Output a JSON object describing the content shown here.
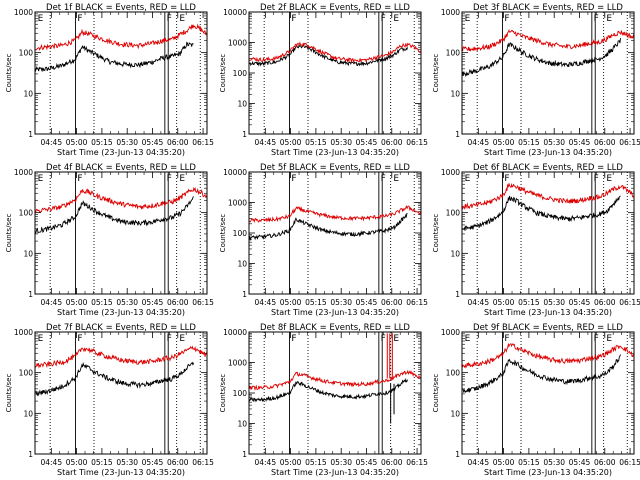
{
  "figure": {
    "ylabel": "Counts/sec",
    "xlabel": "Start Time (23-Jun-13 04:35:20)"
  },
  "chart_data": [
    {
      "type": "line",
      "title": "Det 1f BLACK = Events, RED = LLD",
      "xlabel": "Start Time (23-Jun-13 04:35:20)",
      "ylabel": "Counts/sec",
      "yscale": "log",
      "ylim": [
        1,
        1000
      ],
      "yticks": [
        1,
        10,
        100,
        1000
      ],
      "ytick_labels": [
        "1",
        "10",
        "100",
        "1000"
      ],
      "xlim_minutes": [
        0,
        102
      ],
      "xtick_labels": [
        "04:45",
        "05:00",
        "05:15",
        "05:30",
        "05:45",
        "06:00",
        "06:15"
      ],
      "x": [
        0,
        8,
        16,
        24,
        28,
        32,
        36,
        44,
        52,
        62,
        70,
        76,
        81,
        86,
        90,
        94,
        98,
        102
      ],
      "series": [
        {
          "color": "#000000",
          "values": [
            38,
            40,
            48,
            70,
            140,
            110,
            90,
            60,
            52,
            50,
            60,
            75,
            80,
            95,
            160,
            150,
            null,
            null
          ]
        },
        {
          "color": "#dd0000",
          "values": [
            130,
            140,
            150,
            200,
            320,
            290,
            250,
            190,
            160,
            150,
            170,
            200,
            210,
            280,
            350,
            480,
            380,
            280
          ]
        }
      ],
      "solid_markers": [
        24,
        77,
        79
      ],
      "dotted_markers": [
        9,
        35,
        84,
        98
      ],
      "region_labels": [
        "E",
        "F",
        "F",
        "E"
      ]
    },
    {
      "type": "line",
      "title": "Det 2f BLACK = Events, RED = LLD",
      "xlabel": "Start Time (23-Jun-13 04:35:20)",
      "ylabel": "Counts/sec",
      "yscale": "log",
      "ylim": [
        1,
        10000
      ],
      "yticks": [
        1,
        10,
        100,
        1000,
        10000
      ],
      "ytick_labels": [
        "1",
        "10",
        "100",
        "1000",
        "10000"
      ],
      "xlim_minutes": [
        0,
        102
      ],
      "xtick_labels": [
        "04:45",
        "05:00",
        "05:15",
        "05:30",
        "05:45",
        "06:00",
        "06:15"
      ],
      "x": [
        0,
        8,
        16,
        24,
        28,
        32,
        36,
        44,
        52,
        62,
        70,
        76,
        81,
        86,
        90,
        94,
        98,
        102
      ],
      "series": [
        {
          "color": "#000000",
          "values": [
            210,
            200,
            230,
            380,
            700,
            740,
            620,
            350,
            230,
            200,
            210,
            260,
            300,
            400,
            600,
            650,
            null,
            null
          ]
        },
        {
          "color": "#dd0000",
          "values": [
            300,
            270,
            300,
            500,
            850,
            900,
            780,
            450,
            300,
            260,
            270,
            330,
            380,
            520,
            780,
            850,
            700,
            500
          ]
        }
      ],
      "solid_markers": [
        24,
        77,
        79
      ],
      "dotted_markers": [
        9,
        35,
        84,
        98
      ],
      "region_labels": [
        "F",
        "F",
        "E"
      ]
    },
    {
      "type": "line",
      "title": "Det 3f BLACK = Events, RED = LLD",
      "xlabel": "Start Time (23-Jun-13 04:35:20)",
      "ylabel": "Counts/sec",
      "yscale": "log",
      "ylim": [
        1,
        1000
      ],
      "yticks": [
        1,
        10,
        100,
        1000
      ],
      "ytick_labels": [
        "1",
        "10",
        "100",
        "1000"
      ],
      "xlim_minutes": [
        0,
        102
      ],
      "xtick_labels": [
        "04:45",
        "05:00",
        "05:15",
        "05:30",
        "05:45",
        "06:00",
        "06:15"
      ],
      "x": [
        0,
        8,
        16,
        24,
        28,
        32,
        36,
        44,
        52,
        62,
        70,
        76,
        81,
        86,
        90,
        94,
        98,
        102
      ],
      "series": [
        {
          "color": "#000000",
          "values": [
            30,
            35,
            45,
            75,
            160,
            130,
            100,
            70,
            55,
            50,
            55,
            65,
            70,
            90,
            130,
            200,
            null,
            null
          ]
        },
        {
          "color": "#dd0000",
          "values": [
            120,
            125,
            140,
            200,
            330,
            300,
            250,
            200,
            160,
            140,
            150,
            170,
            180,
            220,
            280,
            320,
            280,
            230
          ]
        }
      ],
      "solid_markers": [
        24,
        77,
        79
      ],
      "dotted_markers": [
        9,
        35,
        84,
        98
      ],
      "region_labels": [
        "E",
        "F",
        "F",
        "E"
      ]
    },
    {
      "type": "line",
      "title": "Det 4f BLACK = Events, RED = LLD",
      "xlabel": "Start Time (23-Jun-13 04:35:20)",
      "ylabel": "Counts/sec",
      "yscale": "log",
      "ylim": [
        1,
        1000
      ],
      "yticks": [
        1,
        10,
        100,
        1000
      ],
      "ytick_labels": [
        "1",
        "10",
        "100",
        "1000"
      ],
      "xlim_minutes": [
        0,
        102
      ],
      "xtick_labels": [
        "04:45",
        "05:00",
        "05:15",
        "05:30",
        "05:45",
        "06:00",
        "06:15"
      ],
      "x": [
        0,
        8,
        16,
        24,
        28,
        32,
        36,
        44,
        52,
        62,
        70,
        76,
        81,
        86,
        90,
        94,
        98,
        102
      ],
      "series": [
        {
          "color": "#000000",
          "values": [
            35,
            40,
            50,
            80,
            170,
            140,
            110,
            75,
            60,
            55,
            60,
            70,
            75,
            95,
            140,
            230,
            null,
            null
          ]
        },
        {
          "color": "#dd0000",
          "values": [
            110,
            120,
            140,
            210,
            350,
            320,
            260,
            200,
            160,
            140,
            150,
            170,
            180,
            230,
            300,
            380,
            320,
            250
          ]
        }
      ],
      "solid_markers": [
        24,
        77,
        79
      ],
      "dotted_markers": [
        9,
        35,
        84,
        98
      ],
      "region_labels": [
        "E",
        "F",
        "F",
        "E"
      ]
    },
    {
      "type": "line",
      "title": "Det 5f BLACK = Events, RED = LLD",
      "xlabel": "Start Time (23-Jun-13 04:35:20)",
      "ylabel": "Counts/sec",
      "yscale": "log",
      "ylim": [
        1,
        10000
      ],
      "yticks": [
        1,
        10,
        100,
        1000,
        10000
      ],
      "ytick_labels": [
        "1",
        "10",
        "100",
        "1000",
        "10000"
      ],
      "xlim_minutes": [
        0,
        102
      ],
      "xtick_labels": [
        "04:45",
        "05:00",
        "05:15",
        "05:30",
        "05:45",
        "06:00",
        "06:15"
      ],
      "x": [
        0,
        8,
        16,
        24,
        28,
        32,
        36,
        44,
        52,
        62,
        70,
        76,
        81,
        86,
        90,
        94,
        98,
        102
      ],
      "series": [
        {
          "color": "#000000",
          "values": [
            70,
            75,
            85,
            120,
            280,
            220,
            180,
            120,
            100,
            90,
            100,
            110,
            120,
            150,
            250,
            400,
            null,
            null
          ]
        },
        {
          "color": "#dd0000",
          "values": [
            260,
            260,
            280,
            350,
            650,
            560,
            480,
            380,
            320,
            300,
            310,
            340,
            360,
            420,
            550,
            700,
            560,
            420
          ]
        }
      ],
      "solid_markers": [
        24,
        77,
        79
      ],
      "dotted_markers": [
        9,
        35,
        84,
        98
      ],
      "region_labels": [
        "F",
        "F",
        "E"
      ]
    },
    {
      "type": "line",
      "title": "Det 6f BLACK = Events, RED = LLD",
      "xlabel": "Start Time (23-Jun-13 04:35:20)",
      "ylabel": "Counts/sec",
      "yscale": "log",
      "ylim": [
        1,
        1000
      ],
      "yticks": [
        1,
        10,
        100,
        1000
      ],
      "ytick_labels": [
        "1",
        "10",
        "100",
        "1000"
      ],
      "xlim_minutes": [
        0,
        102
      ],
      "xtick_labels": [
        "04:45",
        "05:00",
        "05:15",
        "05:30",
        "05:45",
        "06:00",
        "06:15"
      ],
      "x": [
        0,
        8,
        16,
        24,
        28,
        32,
        36,
        44,
        52,
        62,
        70,
        76,
        81,
        86,
        90,
        94,
        98,
        102
      ],
      "series": [
        {
          "color": "#000000",
          "values": [
            40,
            45,
            60,
            100,
            230,
            200,
            150,
            100,
            80,
            70,
            75,
            85,
            90,
            110,
            170,
            260,
            null,
            null
          ]
        },
        {
          "color": "#dd0000",
          "values": [
            140,
            150,
            180,
            260,
            480,
            440,
            360,
            270,
            220,
            190,
            200,
            230,
            240,
            300,
            380,
            450,
            350,
            260
          ]
        }
      ],
      "solid_markers": [
        24,
        77,
        79
      ],
      "dotted_markers": [
        9,
        35,
        84,
        98
      ],
      "region_labels": [
        "E",
        "F",
        "F",
        "E"
      ]
    },
    {
      "type": "line",
      "title": "Det 7f BLACK = Events, RED = LLD",
      "xlabel": "Start Time (23-Jun-13 04:35:20)",
      "ylabel": "Counts/sec",
      "yscale": "log",
      "ylim": [
        1,
        1000
      ],
      "yticks": [
        1,
        10,
        100,
        1000
      ],
      "ytick_labels": [
        "1",
        "10",
        "100",
        "1000"
      ],
      "xlim_minutes": [
        0,
        102
      ],
      "xtick_labels": [
        "04:45",
        "05:00",
        "05:15",
        "05:30",
        "05:45",
        "06:00",
        "06:15"
      ],
      "x": [
        0,
        8,
        16,
        24,
        28,
        32,
        36,
        44,
        52,
        62,
        70,
        76,
        81,
        86,
        90,
        94,
        98,
        102
      ],
      "series": [
        {
          "color": "#000000",
          "values": [
            30,
            35,
            45,
            75,
            150,
            130,
            100,
            70,
            55,
            50,
            55,
            65,
            70,
            90,
            130,
            170,
            null,
            null
          ]
        },
        {
          "color": "#dd0000",
          "values": [
            150,
            160,
            180,
            250,
            400,
            370,
            310,
            240,
            200,
            180,
            190,
            220,
            230,
            290,
            350,
            420,
            330,
            260
          ]
        }
      ],
      "solid_markers": [
        24,
        77,
        79
      ],
      "dotted_markers": [
        9,
        35,
        84,
        98
      ],
      "region_labels": [
        "E",
        "F",
        "F",
        "E"
      ]
    },
    {
      "type": "line",
      "title": "Det 8f BLACK = Events, RED = LLD",
      "xlabel": "Start Time (23-Jun-13 04:35:20)",
      "ylabel": "Counts/sec",
      "yscale": "log",
      "ylim": [
        1,
        10000
      ],
      "yticks": [
        1,
        10,
        100,
        1000,
        10000
      ],
      "ytick_labels": [
        "1",
        "10",
        "100",
        "1000",
        "10000"
      ],
      "xlim_minutes": [
        0,
        102
      ],
      "xtick_labels": [
        "04:45",
        "05:00",
        "05:15",
        "05:30",
        "05:45",
        "06:00",
        "06:15"
      ],
      "x": [
        0,
        8,
        16,
        24,
        28,
        32,
        36,
        44,
        52,
        62,
        70,
        76,
        81,
        86,
        90,
        94,
        98,
        102
      ],
      "series": [
        {
          "color": "#000000",
          "values": [
            60,
            60,
            70,
            100,
            220,
            190,
            150,
            100,
            80,
            75,
            80,
            95,
            100,
            130,
            200,
            280,
            null,
            null
          ]
        },
        {
          "color": "#dd0000",
          "values": [
            150,
            150,
            170,
            230,
            430,
            390,
            330,
            250,
            210,
            190,
            200,
            230,
            250,
            320,
            420,
            500,
            400,
            300
          ]
        }
      ],
      "spike_red": [
        {
          "x": 82,
          "values": [
            300,
            9000
          ]
        },
        {
          "x": 83.5,
          "values": [
            300,
            9000
          ]
        },
        {
          "x": 85,
          "values": [
            300,
            9000
          ]
        }
      ],
      "spike_black": [
        {
          "x": 84,
          "values": [
            10,
            200
          ]
        },
        {
          "x": 86,
          "values": [
            20,
            200
          ]
        }
      ],
      "solid_markers": [
        24,
        77,
        79
      ],
      "dotted_markers": [
        9,
        35,
        84,
        98
      ],
      "region_labels": [
        "F",
        "F",
        "E"
      ]
    },
    {
      "type": "line",
      "title": "Det 9f BLACK = Events, RED = LLD",
      "xlabel": "Start Time (23-Jun-13 04:35:20)",
      "ylabel": "Counts/sec",
      "yscale": "log",
      "ylim": [
        1,
        1000
      ],
      "yticks": [
        1,
        10,
        100,
        1000
      ],
      "ytick_labels": [
        "1",
        "10",
        "100",
        "1000"
      ],
      "xlim_minutes": [
        0,
        102
      ],
      "xtick_labels": [
        "04:45",
        "05:00",
        "05:15",
        "05:30",
        "05:45",
        "06:00",
        "06:15"
      ],
      "x": [
        0,
        8,
        16,
        24,
        28,
        32,
        36,
        44,
        52,
        62,
        70,
        76,
        81,
        86,
        90,
        94,
        98,
        102
      ],
      "series": [
        {
          "color": "#000000",
          "values": [
            35,
            40,
            55,
            90,
            200,
            170,
            130,
            90,
            70,
            60,
            65,
            75,
            80,
            100,
            150,
            250,
            null,
            null
          ]
        },
        {
          "color": "#dd0000",
          "values": [
            150,
            160,
            190,
            270,
            480,
            430,
            350,
            260,
            210,
            190,
            200,
            230,
            240,
            300,
            380,
            460,
            350,
            260
          ]
        }
      ],
      "solid_markers": [
        24,
        77,
        79
      ],
      "dotted_markers": [
        9,
        35,
        84,
        98
      ],
      "region_labels": [
        "E",
        "F",
        "F",
        "E"
      ]
    }
  ]
}
